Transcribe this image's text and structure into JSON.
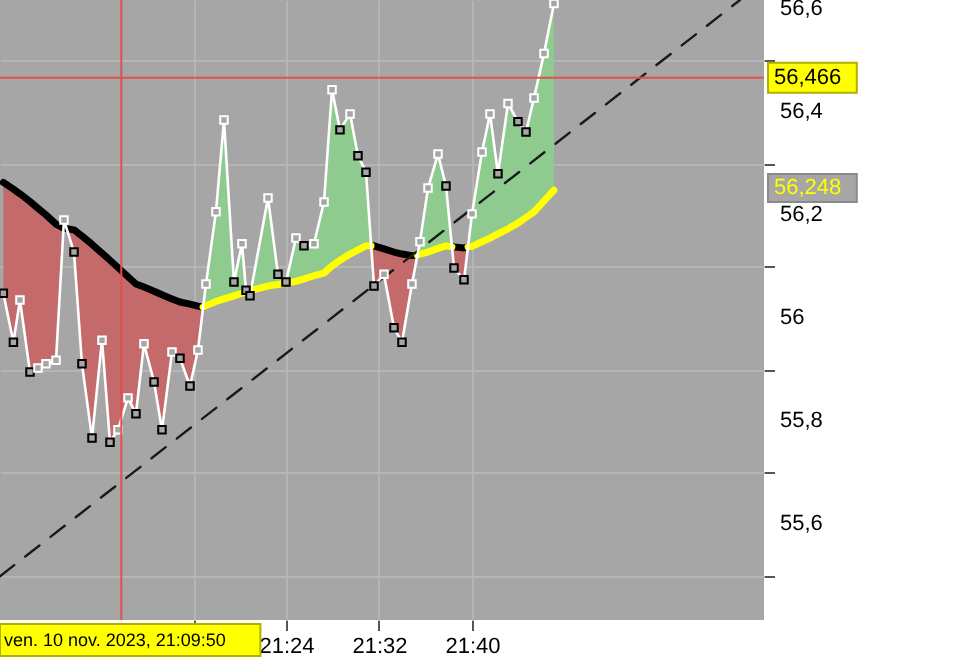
{
  "chart_data": {
    "type": "line",
    "xlim": [
      20.99,
      22.0853
    ],
    "ylim": [
      55.414,
      56.617
    ],
    "xticks": [
      {
        "value": 21.2667,
        "label": null
      },
      {
        "value": 21.4,
        "label": "21:24"
      },
      {
        "value": 21.5333,
        "label": "21:32"
      },
      {
        "value": 21.6667,
        "label": "21:40"
      }
    ],
    "yticks": [
      {
        "value": 55.5,
        "label": null
      },
      {
        "value": 55.6,
        "label": "55,6"
      },
      {
        "value": 55.7,
        "label": null
      },
      {
        "value": 55.8,
        "label": "55,8"
      },
      {
        "value": 55.9,
        "label": null
      },
      {
        "value": 56,
        "label": "56"
      },
      {
        "value": 56.1,
        "label": null
      },
      {
        "value": 56.2,
        "label": "56,2"
      },
      {
        "value": 56.3,
        "label": null
      },
      {
        "value": 56.4,
        "label": "56,4"
      },
      {
        "value": 56.5,
        "label": null
      },
      {
        "value": 56.6,
        "label": "56,6"
      }
    ],
    "grid": true,
    "series": [
      {
        "type": "line",
        "color": "#000000",
        "x": [
          20.9948,
          21.0092,
          21.0186,
          21.033,
          21.0444,
          21.0559,
          21.0703,
          21.0817,
          21.0961,
          21.1075,
          21.1219,
          21.1362,
          21.1477,
          21.1591,
          21.1735,
          21.1849,
          21.1964,
          21.2108,
          21.2222,
          21.2366,
          21.248,
          21.2624,
          21.2738,
          21.2812,
          21.4,
          21.522,
          21.5262,
          21.5405,
          21.5548,
          21.5663,
          21.5806,
          21.5882,
          21.63,
          21.6379,
          21.6409,
          21.6552,
          21.661
        ],
        "values": [
          56.263,
          56.25,
          56.241,
          56.226,
          56.213,
          56.2,
          56.182,
          56.174,
          56.171,
          56.159,
          56.143,
          56.126,
          56.112,
          56.098,
          56.08,
          56.066,
          56.06,
          56.052,
          56.045,
          56.037,
          56.031,
          56.027,
          56.023,
          56.021,
          null,
          56.14,
          56.14,
          56.134,
          56.128,
          56.124,
          56.121,
          56.122,
          null,
          56.138,
          56.138,
          56.136,
          56.138
        ],
        "upper": [
          56.263,
          56.25,
          56.241,
          56.226,
          56.213,
          56.2,
          56.182,
          56.174,
          56.171,
          56.159,
          56.143,
          56.126,
          56.112,
          56.098,
          56.08,
          56.066,
          56.06,
          56.052,
          56.045,
          56.037,
          56.031,
          56.027,
          56.023,
          56.021,
          null,
          56.14,
          56.14,
          56.134,
          56.128,
          56.124,
          56.121,
          56.122,
          null,
          56.138,
          56.138,
          56.136,
          56.138
        ],
        "lower": [
          56.048,
          55.953,
          56.035,
          55.895,
          55.903,
          55.911,
          55.918,
          56.19,
          56.128,
          55.911,
          55.767,
          55.957,
          55.759,
          55.783,
          55.845,
          55.814,
          55.95,
          55.876,
          55.783,
          55.934,
          55.922,
          55.868,
          55.938,
          56.021,
          null,
          56.14,
          56.062,
          56.085,
          55.981,
          55.953,
          56.066,
          56.122,
          null,
          56.138,
          56.097,
          56.074,
          56.138
        ]
      },
      {
        "type": "line",
        "color": "#ffff00",
        "x": [
          21.2812,
          21.2853,
          21.2996,
          21.3111,
          21.3254,
          21.3369,
          21.3427,
          21.3484,
          21.3742,
          21.3885,
          21.4,
          21.4143,
          21.4258,
          21.4401,
          21.4545,
          21.466,
          21.4774,
          21.4918,
          21.5032,
          21.5147,
          21.522,
          21.55,
          21.5882,
          21.5921,
          21.6036,
          21.6179,
          21.6294,
          21.6379,
          21.65,
          21.661,
          21.6667,
          21.681,
          21.6925,
          21.7039,
          21.7183,
          21.7326,
          21.7441,
          21.7556,
          21.7699,
          21.7842
        ],
        "values": [
          56.021,
          56.024,
          56.032,
          56.037,
          56.043,
          56.048,
          56.05,
          56.053,
          56.062,
          56.065,
          56.068,
          56.071,
          56.076,
          56.082,
          56.087,
          56.101,
          56.112,
          56.124,
          56.132,
          56.14,
          56.14,
          null,
          56.122,
          56.124,
          56.128,
          56.135,
          56.14,
          56.138,
          null,
          56.138,
          56.139,
          56.148,
          56.155,
          56.163,
          56.173,
          56.184,
          56.195,
          56.206,
          56.227,
          56.248
        ],
        "lower": [
          56.021,
          56.024,
          56.032,
          56.037,
          56.043,
          56.048,
          56.05,
          56.053,
          56.062,
          56.065,
          56.068,
          56.071,
          56.076,
          56.082,
          56.087,
          56.101,
          56.112,
          56.124,
          56.132,
          56.14,
          56.14,
          null,
          56.122,
          56.124,
          56.128,
          56.135,
          56.14,
          56.138,
          null,
          56.138,
          56.139,
          56.148,
          56.155,
          56.163,
          56.173,
          56.184,
          56.195,
          56.206,
          56.227,
          56.248
        ],
        "upper": [
          56.021,
          56.066,
          56.206,
          56.384,
          56.07,
          56.144,
          56.054,
          56.043,
          56.233,
          56.085,
          56.07,
          56.155,
          56.14,
          56.144,
          56.225,
          56.443,
          56.365,
          56.396,
          56.315,
          56.283,
          56.14,
          null,
          56.122,
          56.148,
          56.252,
          56.318,
          56.256,
          56.138,
          null,
          56.138,
          56.202,
          56.322,
          56.396,
          56.28,
          56.416,
          56.381,
          56.361,
          56.427,
          56.513,
          56.61
        ]
      },
      {
        "type": "line",
        "color": "#1a1a1a",
        "line_style": "dashed",
        "x": [
          20.99,
          22.0509
        ],
        "values": [
          55.499,
          56.617
        ]
      },
      {
        "type": "line",
        "color": "#ffffff",
        "marker": "square",
        "x": [
          20.9948,
          21.0092,
          21.0186,
          21.033,
          21.0444,
          21.0559,
          21.0703,
          21.0817,
          21.0961,
          21.1075,
          21.1219,
          21.1362,
          21.1477,
          21.1591,
          21.1735,
          21.1849,
          21.1964,
          21.2108,
          21.2222,
          21.2366,
          21.248,
          21.2624,
          21.2738,
          21.2853,
          21.2996,
          21.3111,
          21.3254,
          21.3369,
          21.3427,
          21.3484,
          21.3742,
          21.3885,
          21.4,
          21.4143,
          21.4258,
          21.4401,
          21.4545,
          21.466,
          21.4774,
          21.4918,
          21.5032,
          21.5147,
          21.5262,
          21.5405,
          21.5548,
          21.5663,
          21.5806,
          21.5921,
          21.6036,
          21.6179,
          21.6294,
          21.6409,
          21.6552,
          21.6667,
          21.681,
          21.6925,
          21.7039,
          21.7183,
          21.7326,
          21.7441,
          21.7556,
          21.7699,
          21.7842
        ],
        "values": [
          56.048,
          55.953,
          56.035,
          55.895,
          55.903,
          55.911,
          55.918,
          56.19,
          56.128,
          55.911,
          55.767,
          55.957,
          55.759,
          55.783,
          55.845,
          55.814,
          55.95,
          55.876,
          55.783,
          55.934,
          55.922,
          55.868,
          55.938,
          56.066,
          56.206,
          56.384,
          56.07,
          56.144,
          56.054,
          56.043,
          56.233,
          56.085,
          56.07,
          56.155,
          56.14,
          56.144,
          56.225,
          56.443,
          56.365,
          56.396,
          56.315,
          56.283,
          56.062,
          56.085,
          55.981,
          55.953,
          56.066,
          56.148,
          56.252,
          56.318,
          56.256,
          56.097,
          56.074,
          56.202,
          56.322,
          56.396,
          56.28,
          56.416,
          56.381,
          56.361,
          56.427,
          56.513,
          56.61
        ],
        "colors": [
          "#000000",
          "#000000",
          "#ffffff",
          "#000000",
          "#ffffff",
          "#ffffff",
          "#ffffff",
          "#ffffff",
          "#000000",
          "#000000",
          "#000000",
          "#ffffff",
          "#000000",
          "#ffffff",
          "#ffffff",
          "#000000",
          "#ffffff",
          "#000000",
          "#000000",
          "#ffffff",
          "#000000",
          "#000000",
          "#ffffff",
          "#ffffff",
          "#ffffff",
          "#ffffff",
          "#000000",
          "#ffffff",
          "#000000",
          "#000000",
          "#ffffff",
          "#000000",
          "#000000",
          "#ffffff",
          "#000000",
          "#ffffff",
          "#ffffff",
          "#ffffff",
          "#000000",
          "#ffffff",
          "#000000",
          "#000000",
          "#000000",
          "#ffffff",
          "#000000",
          "#000000",
          "#ffffff",
          "#ffffff",
          "#ffffff",
          "#ffffff",
          "#000000",
          "#000000",
          "#000000",
          "#ffffff",
          "#ffffff",
          "#ffffff",
          "#000000",
          "#ffffff",
          "#000000",
          "#000000",
          "#ffffff",
          "#ffffff",
          "#ffffff"
        ]
      }
    ],
    "ref_lines": [
      {
        "axis": "y",
        "value": 56.466,
        "label": "56,466",
        "color": "#e05050"
      },
      {
        "axis": "x",
        "value": 21.1639,
        "label": "ven. 10 nov. 2023, 21:09:50",
        "color": "#e05050"
      }
    ],
    "annotations": [
      "56,248"
    ]
  }
}
